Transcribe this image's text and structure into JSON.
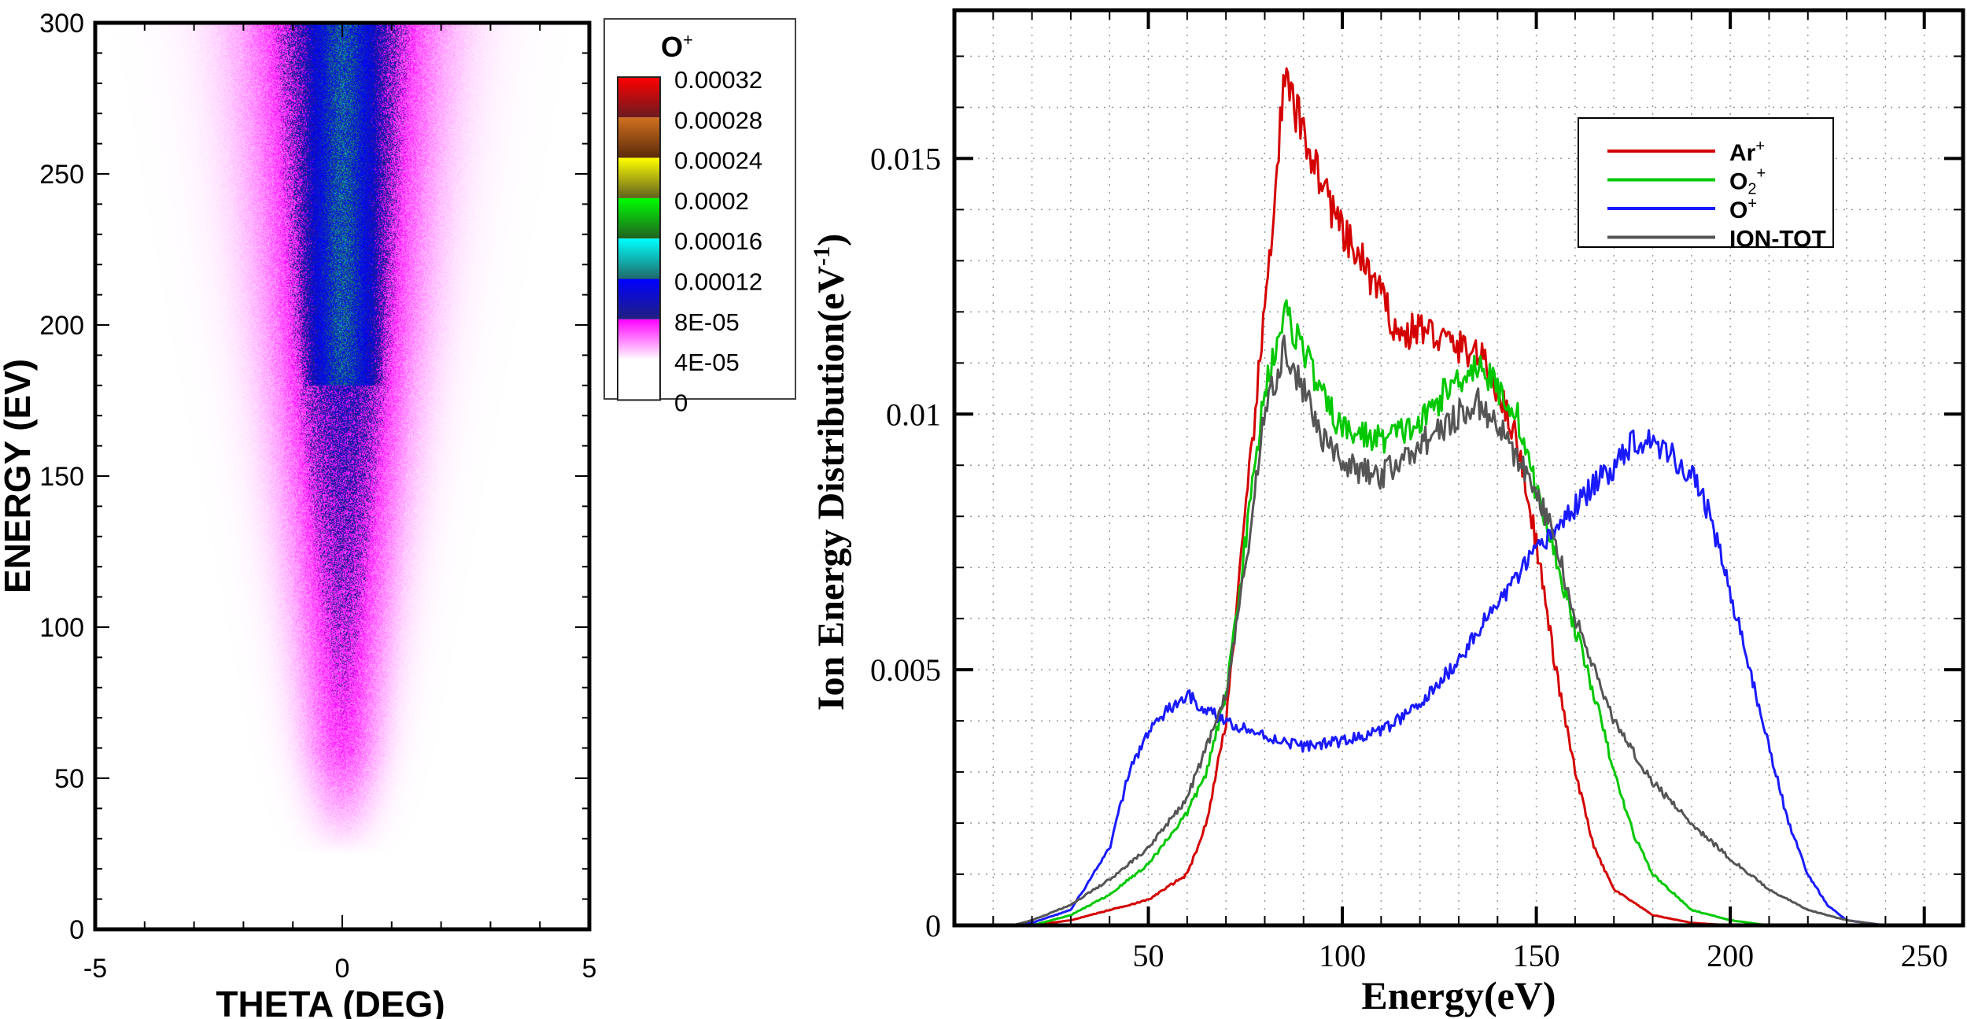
{
  "chart_data": [
    {
      "type": "heatmap",
      "xlabel": "THETA (DEG)",
      "ylabel": "ENERGY (EV)",
      "xlim": [
        -5,
        5
      ],
      "ylim": [
        0,
        300
      ],
      "xticks": [
        "-5",
        "0",
        "5"
      ],
      "yticks": [
        "0",
        "50",
        "100",
        "150",
        "200",
        "250",
        "300"
      ],
      "colorbar": {
        "title": "O",
        "title_sup": "+",
        "levels": [
          "0.00032",
          "0.00028",
          "0.00024",
          "0.0002",
          "0.00016",
          "0.00012",
          "8E-05",
          "4E-05",
          "0"
        ],
        "colors": [
          "#ff0000",
          "#6a1a20",
          "#d07020",
          "#5a2a08",
          "#ffff00",
          "#606020",
          "#00ff00",
          "#206020",
          "#00ffff",
          "#206868",
          "#0000ff",
          "#202080",
          "#ff00ff",
          "#ffffff"
        ]
      }
    },
    {
      "type": "line",
      "xlabel": "Energy(eV)",
      "ylabel": "Ion Energy Distribution(eV",
      "ylabel_sup": "-1",
      "ylabel_close": ")",
      "xlim": [
        0,
        260
      ],
      "ylim": [
        0,
        0.0179
      ],
      "xticks": [
        "50",
        "100",
        "150",
        "200",
        "250"
      ],
      "yticks": [
        "0",
        "0.005",
        "0.01",
        "0.015"
      ],
      "grid": true,
      "legend_position": "top-right",
      "series": [
        {
          "name": "Ar",
          "sup": "+",
          "sub": "",
          "color": "#d40000",
          "x": [
            20,
            30,
            40,
            50,
            60,
            65,
            70,
            75,
            80,
            85,
            90,
            95,
            100,
            105,
            110,
            115,
            120,
            125,
            130,
            135,
            140,
            145,
            150,
            155,
            160,
            165,
            170,
            180,
            190,
            200,
            220,
            260
          ],
          "y": [
            0,
            0.0001,
            0.0003,
            0.0005,
            0.001,
            0.002,
            0.004,
            0.008,
            0.012,
            0.0165,
            0.0155,
            0.0145,
            0.0135,
            0.013,
            0.0123,
            0.0115,
            0.0117,
            0.0115,
            0.0113,
            0.0112,
            0.0105,
            0.0095,
            0.0075,
            0.005,
            0.003,
            0.0015,
            0.0007,
            0.0002,
            5e-05,
            0,
            0,
            0
          ]
        },
        {
          "name": "O",
          "sup": "+",
          "sub": "2",
          "color": "#00c800",
          "x": [
            20,
            30,
            40,
            50,
            60,
            65,
            70,
            75,
            80,
            85,
            90,
            95,
            100,
            110,
            120,
            125,
            130,
            135,
            140,
            145,
            150,
            155,
            160,
            165,
            170,
            175,
            180,
            190,
            200,
            210,
            230,
            260
          ],
          "y": [
            0,
            0.0002,
            0.0006,
            0.0012,
            0.0022,
            0.003,
            0.0045,
            0.0075,
            0.0105,
            0.012,
            0.0113,
            0.0103,
            0.0097,
            0.0095,
            0.0098,
            0.0103,
            0.0107,
            0.011,
            0.0105,
            0.01,
            0.0085,
            0.0072,
            0.0058,
            0.0045,
            0.003,
            0.0018,
            0.001,
            0.0003,
            0.0001,
            0,
            0,
            0
          ]
        },
        {
          "name": "O",
          "sup": "+",
          "sub": "",
          "color": "#1a1aff",
          "x": [
            15,
            20,
            30,
            40,
            45,
            50,
            55,
            60,
            65,
            70,
            80,
            90,
            100,
            110,
            120,
            130,
            140,
            150,
            160,
            170,
            175,
            180,
            185,
            190,
            195,
            200,
            205,
            210,
            215,
            220,
            225,
            230,
            240,
            260
          ],
          "y": [
            0,
            5e-05,
            0.0003,
            0.0015,
            0.003,
            0.0038,
            0.0042,
            0.0045,
            0.0042,
            0.004,
            0.0037,
            0.0035,
            0.0036,
            0.0038,
            0.0043,
            0.0052,
            0.0063,
            0.0073,
            0.0082,
            0.009,
            0.0095,
            0.0095,
            0.0092,
            0.0088,
            0.008,
            0.0065,
            0.005,
            0.0035,
            0.002,
            0.001,
            0.0004,
            0.0001,
            0,
            0
          ]
        },
        {
          "name": "ION-TOT",
          "sup": "",
          "sub": "",
          "color": "#555555",
          "x": [
            15,
            20,
            30,
            40,
            50,
            60,
            70,
            75,
            80,
            85,
            90,
            95,
            100,
            110,
            120,
            130,
            135,
            140,
            150,
            155,
            160,
            170,
            180,
            190,
            200,
            210,
            220,
            230,
            240,
            260
          ],
          "y": [
            0,
            0.0001,
            0.0004,
            0.0009,
            0.0015,
            0.0025,
            0.0045,
            0.007,
            0.01,
            0.0112,
            0.0105,
            0.0095,
            0.009,
            0.0088,
            0.0094,
            0.01,
            0.0102,
            0.0098,
            0.0085,
            0.0075,
            0.006,
            0.004,
            0.0028,
            0.002,
            0.0013,
            0.0007,
            0.0003,
            0.0001,
            0,
            0
          ]
        }
      ]
    }
  ]
}
